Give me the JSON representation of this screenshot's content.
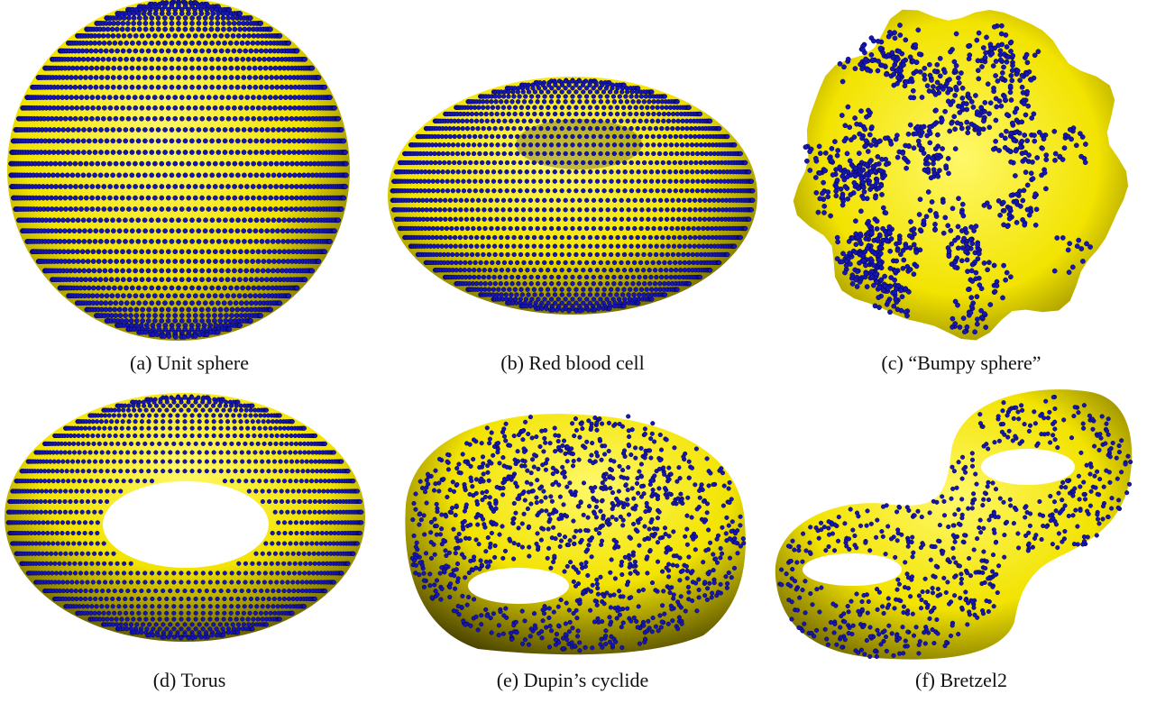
{
  "colors": {
    "surface_light": "#fff86a",
    "surface_mid": "#f2e300",
    "surface_dark": "#4e4700",
    "point_fill": "#1616b4",
    "point_stroke": "#00004a"
  },
  "panels": [
    {
      "id": "a",
      "caption": "(a) Unit sphere",
      "shape": "sphere",
      "points": "regular"
    },
    {
      "id": "b",
      "caption": "(b) Red blood cell",
      "shape": "red-blood-cell",
      "points": "regular"
    },
    {
      "id": "c",
      "caption": "(c) “Bumpy sphere”",
      "shape": "bumpy-sphere",
      "points": "random"
    },
    {
      "id": "d",
      "caption": "(d) Torus",
      "shape": "torus",
      "points": "regular"
    },
    {
      "id": "e",
      "caption": "(e) Dupin’s cyclide",
      "shape": "dupin-cyclide",
      "points": "random"
    },
    {
      "id": "f",
      "caption": "(f) Bretzel2",
      "shape": "bretzel2",
      "points": "random"
    }
  ]
}
